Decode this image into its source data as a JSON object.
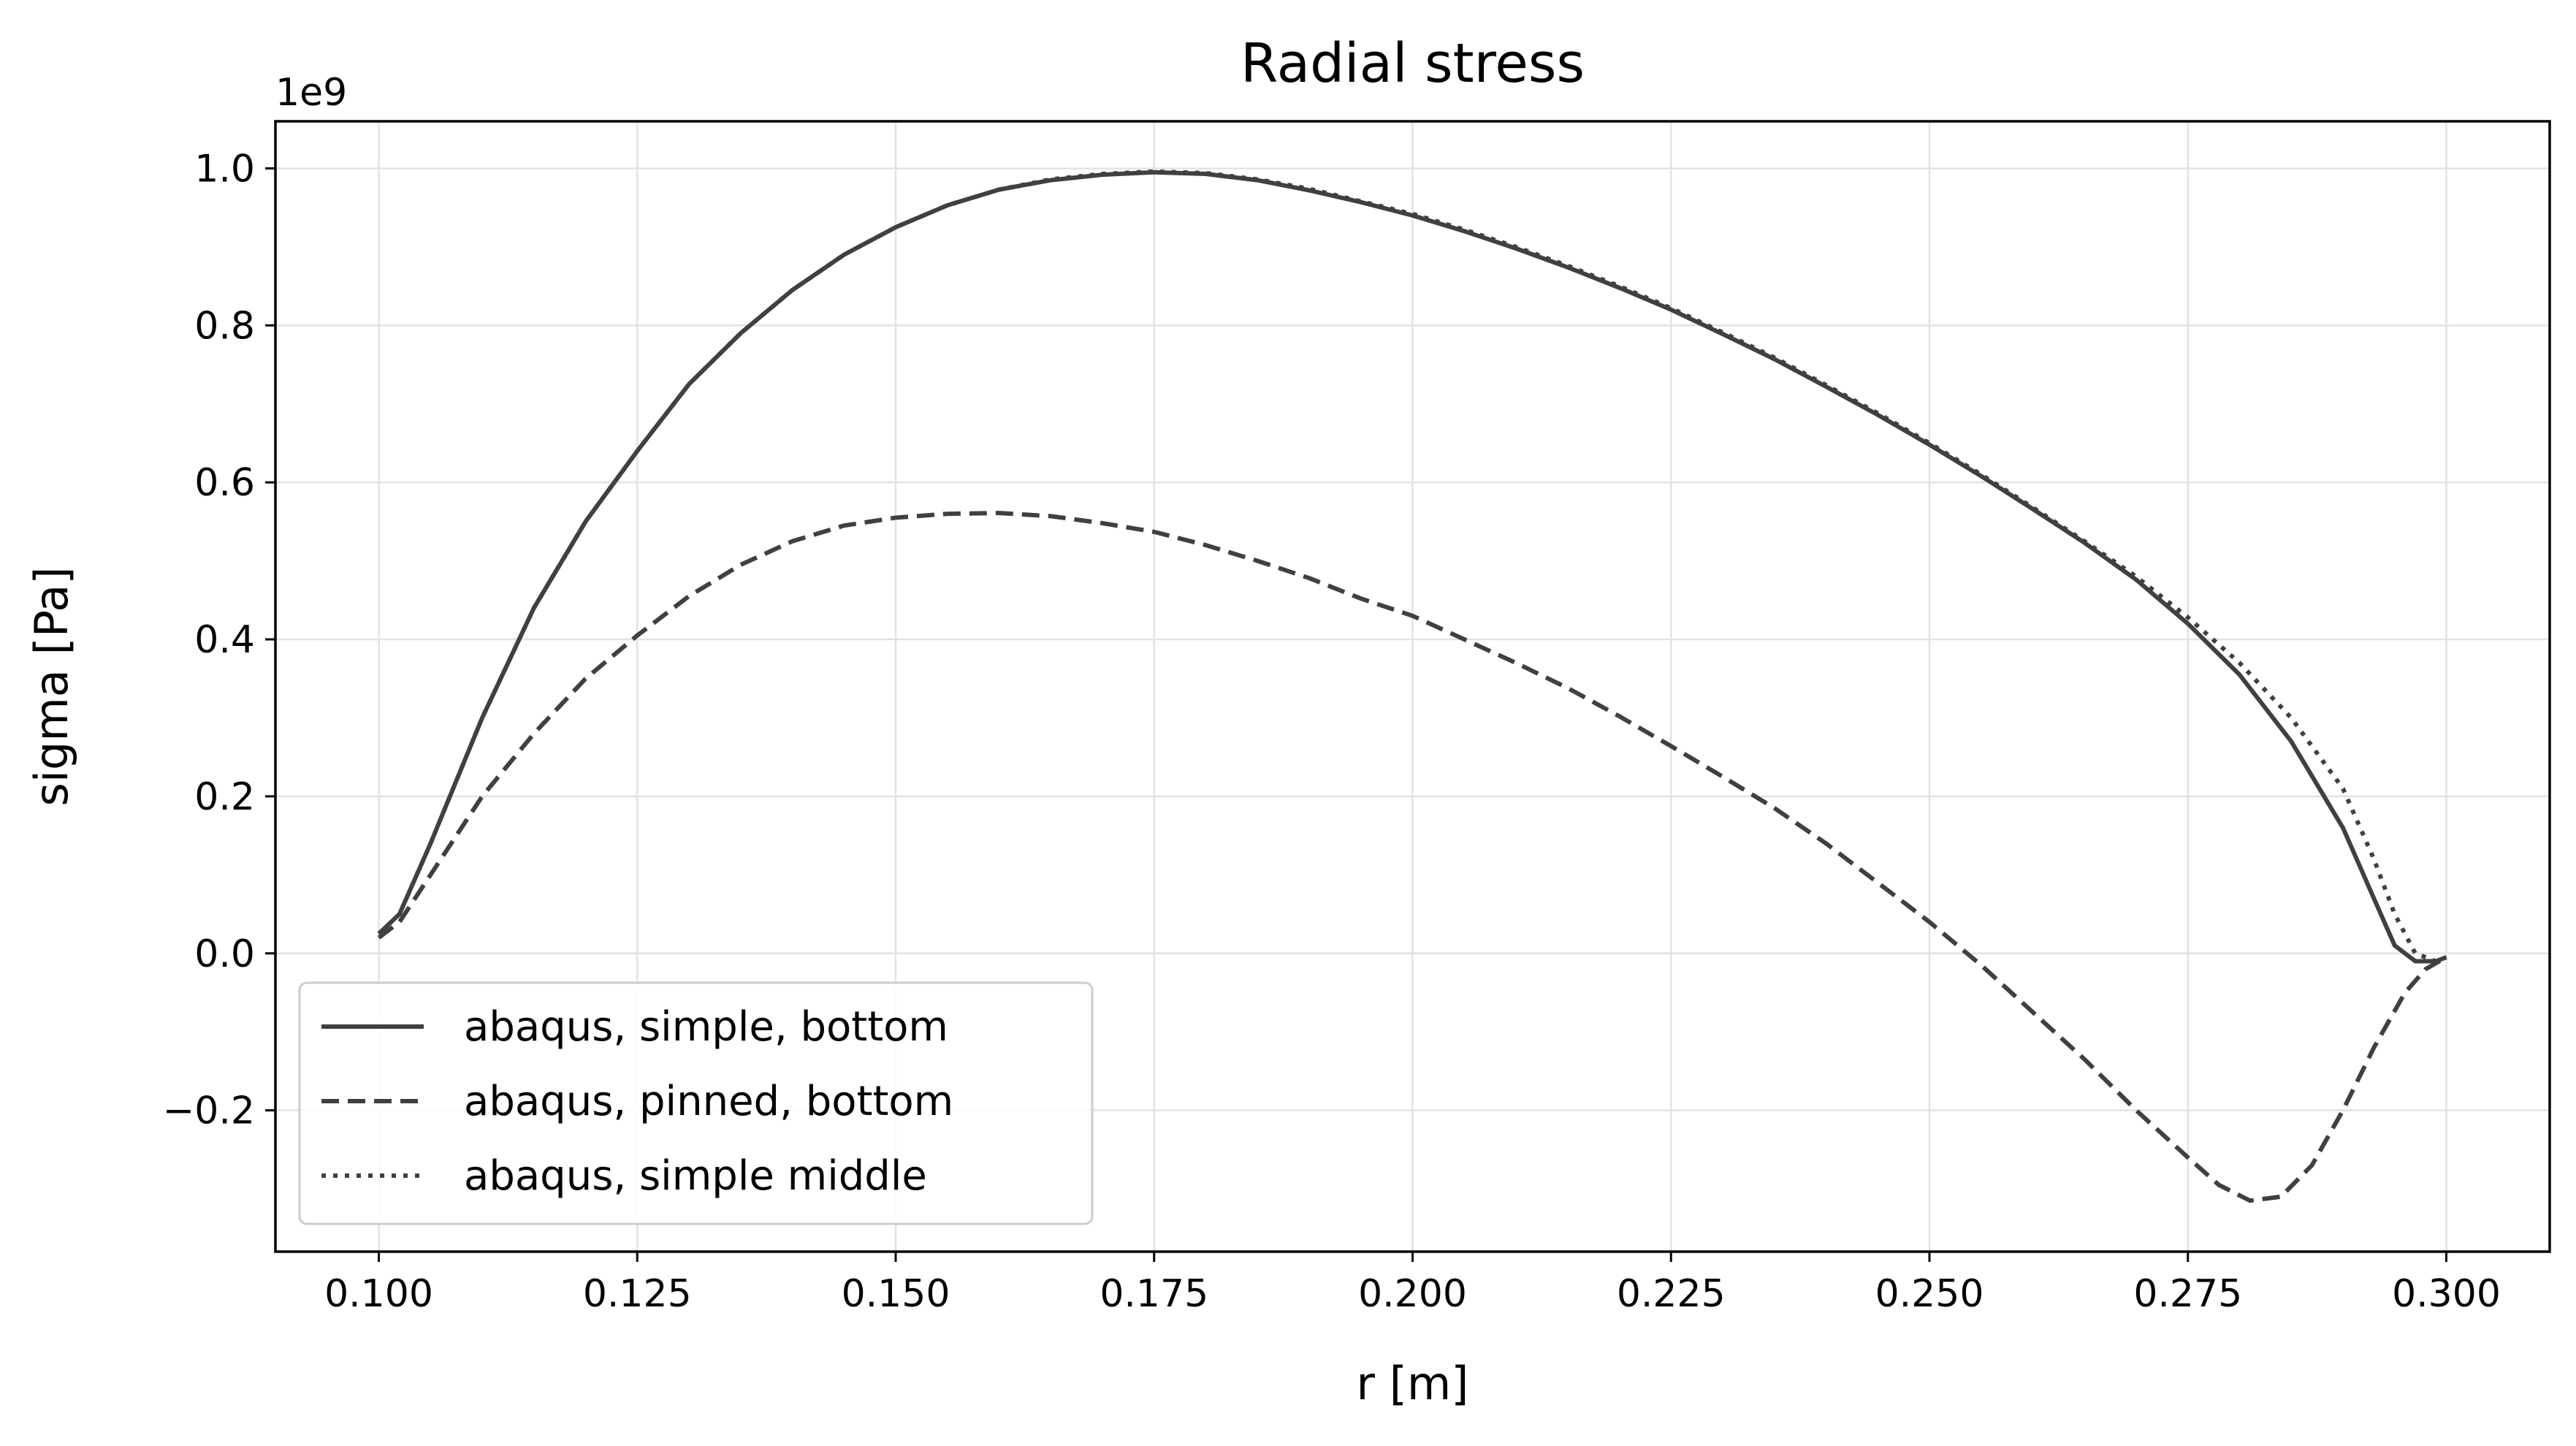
{
  "chart_data": {
    "type": "line",
    "title": "Radial stress",
    "xlabel": "r [m]",
    "ylabel": "sigma [Pa]",
    "y_offset_label": "1e9",
    "xlim": [
      0.09,
      0.31
    ],
    "ylim": [
      -0.38,
      1.06
    ],
    "xticks": [
      0.1,
      0.125,
      0.15,
      0.175,
      0.2,
      0.225,
      0.25,
      0.275,
      0.3
    ],
    "xtick_labels": [
      "0.100",
      "0.125",
      "0.150",
      "0.175",
      "0.200",
      "0.225",
      "0.250",
      "0.275",
      "0.300"
    ],
    "yticks": [
      -0.2,
      0.0,
      0.2,
      0.4,
      0.6,
      0.8,
      1.0
    ],
    "ytick_labels": [
      "−0.2",
      "0.0",
      "0.2",
      "0.4",
      "0.6",
      "0.8",
      "1.0"
    ],
    "grid": true,
    "legend_position": "lower-left",
    "series": [
      {
        "name": "abaqus, simple, bottom",
        "style": "solid",
        "color": "#404040",
        "x": [
          0.1,
          0.102,
          0.105,
          0.11,
          0.115,
          0.12,
          0.125,
          0.13,
          0.135,
          0.14,
          0.145,
          0.15,
          0.155,
          0.16,
          0.165,
          0.17,
          0.175,
          0.18,
          0.185,
          0.19,
          0.195,
          0.2,
          0.205,
          0.21,
          0.215,
          0.22,
          0.225,
          0.23,
          0.235,
          0.24,
          0.245,
          0.25,
          0.255,
          0.26,
          0.265,
          0.27,
          0.275,
          0.28,
          0.285,
          0.29,
          0.293,
          0.295,
          0.297,
          0.299,
          0.3
        ],
        "y": [
          0.025,
          0.05,
          0.14,
          0.3,
          0.44,
          0.55,
          0.64,
          0.725,
          0.79,
          0.845,
          0.89,
          0.925,
          0.953,
          0.973,
          0.985,
          0.992,
          0.995,
          0.993,
          0.985,
          0.972,
          0.957,
          0.94,
          0.92,
          0.898,
          0.874,
          0.848,
          0.82,
          0.789,
          0.757,
          0.722,
          0.686,
          0.648,
          0.608,
          0.566,
          0.523,
          0.476,
          0.42,
          0.355,
          0.27,
          0.16,
          0.07,
          0.01,
          -0.01,
          -0.01,
          -0.005
        ]
      },
      {
        "name": "abaqus, pinned, bottom",
        "style": "dashed",
        "color": "#404040",
        "x": [
          0.1,
          0.102,
          0.105,
          0.11,
          0.115,
          0.12,
          0.125,
          0.13,
          0.135,
          0.14,
          0.145,
          0.15,
          0.155,
          0.16,
          0.165,
          0.17,
          0.175,
          0.18,
          0.185,
          0.19,
          0.195,
          0.2,
          0.205,
          0.21,
          0.215,
          0.22,
          0.225,
          0.23,
          0.235,
          0.24,
          0.245,
          0.25,
          0.255,
          0.26,
          0.265,
          0.27,
          0.275,
          0.278,
          0.281,
          0.284,
          0.287,
          0.29,
          0.293,
          0.296,
          0.298,
          0.3
        ],
        "y": [
          0.02,
          0.04,
          0.1,
          0.2,
          0.28,
          0.35,
          0.405,
          0.455,
          0.495,
          0.525,
          0.545,
          0.555,
          0.56,
          0.561,
          0.557,
          0.548,
          0.537,
          0.52,
          0.5,
          0.478,
          0.452,
          0.43,
          0.4,
          0.37,
          0.338,
          0.302,
          0.264,
          0.225,
          0.185,
          0.14,
          0.09,
          0.04,
          -0.015,
          -0.075,
          -0.135,
          -0.2,
          -0.26,
          -0.295,
          -0.315,
          -0.31,
          -0.27,
          -0.2,
          -0.12,
          -0.05,
          -0.02,
          -0.005
        ]
      },
      {
        "name": "abaqus, simple middle",
        "style": "dotted",
        "color": "#404040",
        "x": [
          0.1,
          0.102,
          0.105,
          0.11,
          0.115,
          0.12,
          0.125,
          0.13,
          0.135,
          0.14,
          0.145,
          0.15,
          0.155,
          0.16,
          0.165,
          0.17,
          0.175,
          0.18,
          0.185,
          0.19,
          0.195,
          0.2,
          0.205,
          0.21,
          0.215,
          0.22,
          0.225,
          0.23,
          0.235,
          0.24,
          0.245,
          0.25,
          0.255,
          0.26,
          0.265,
          0.27,
          0.275,
          0.28,
          0.285,
          0.29,
          0.293,
          0.295,
          0.297,
          0.299,
          0.3
        ],
        "y": [
          0.025,
          0.05,
          0.14,
          0.3,
          0.44,
          0.55,
          0.64,
          0.725,
          0.79,
          0.845,
          0.89,
          0.925,
          0.953,
          0.973,
          0.986,
          0.993,
          0.996,
          0.994,
          0.986,
          0.974,
          0.958,
          0.942,
          0.922,
          0.9,
          0.876,
          0.85,
          0.822,
          0.791,
          0.759,
          0.724,
          0.688,
          0.65,
          0.61,
          0.568,
          0.525,
          0.48,
          0.428,
          0.37,
          0.3,
          0.21,
          0.12,
          0.05,
          0.0,
          -0.01,
          -0.005
        ]
      }
    ]
  }
}
